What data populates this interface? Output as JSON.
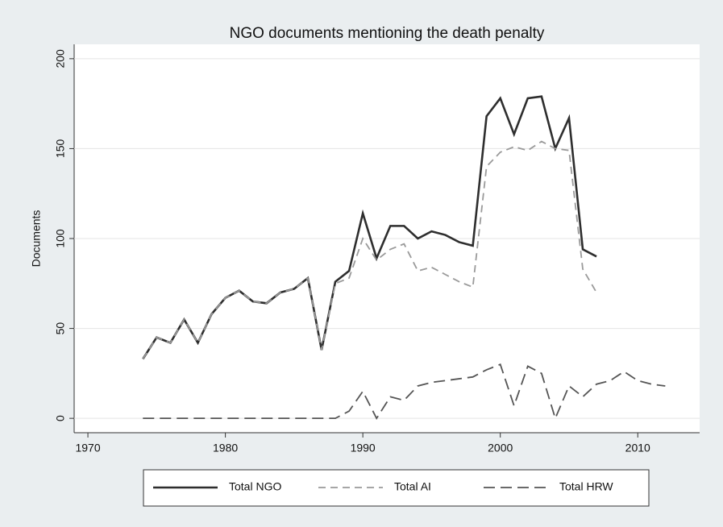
{
  "chart_data": {
    "type": "line",
    "title": "NGO documents mentioning the death penalty",
    "y_label": "Documents",
    "x": [
      1974,
      1975,
      1976,
      1977,
      1978,
      1979,
      1980,
      1981,
      1982,
      1983,
      1984,
      1985,
      1986,
      1987,
      1988,
      1989,
      1990,
      1991,
      1992,
      1993,
      1994,
      1995,
      1996,
      1997,
      1998,
      1999,
      2000,
      2001,
      2002,
      2003,
      2004,
      2005,
      2006,
      2007,
      2008,
      2009,
      2010,
      2011,
      2012
    ],
    "series": [
      {
        "name": "Total NGO",
        "color": "#2e2e2e",
        "dash": "none",
        "values": [
          33,
          45,
          42,
          55,
          42,
          58,
          67,
          71,
          65,
          64,
          70,
          72,
          78,
          38,
          76,
          82,
          114,
          89,
          107,
          107,
          100,
          104,
          102,
          98,
          96,
          168,
          178,
          158,
          178,
          179,
          150,
          167,
          94,
          90,
          null,
          null,
          null,
          null,
          null
        ]
      },
      {
        "name": "Total AI",
        "color": "#9a9a9a",
        "dash": "9 6",
        "values": [
          33,
          45,
          42,
          55,
          42,
          58,
          67,
          71,
          65,
          64,
          70,
          72,
          78,
          38,
          75,
          78,
          100,
          88,
          94,
          97,
          82,
          84,
          80,
          76,
          73,
          140,
          148,
          151,
          149,
          154,
          150,
          149,
          83,
          70,
          null,
          null,
          null,
          null,
          null
        ]
      },
      {
        "name": "Total HRW",
        "color": "#555555",
        "dash": "14 7",
        "values": [
          0,
          0,
          0,
          0,
          0,
          0,
          0,
          0,
          0,
          0,
          0,
          0,
          0,
          0,
          0,
          4,
          15,
          0,
          12,
          10,
          18,
          20,
          21,
          22,
          23,
          27,
          30,
          7,
          29,
          25,
          0,
          18,
          12,
          19,
          21,
          26,
          21,
          19,
          18
        ]
      }
    ],
    "xlim": [
      1969,
      2014.5
    ],
    "xticks": [
      1970,
      1980,
      1990,
      2000,
      2010
    ],
    "ylim": [
      -8,
      208
    ],
    "yticks": [
      0,
      50,
      100,
      150,
      200
    ],
    "grid": true,
    "legend": "bottom"
  }
}
